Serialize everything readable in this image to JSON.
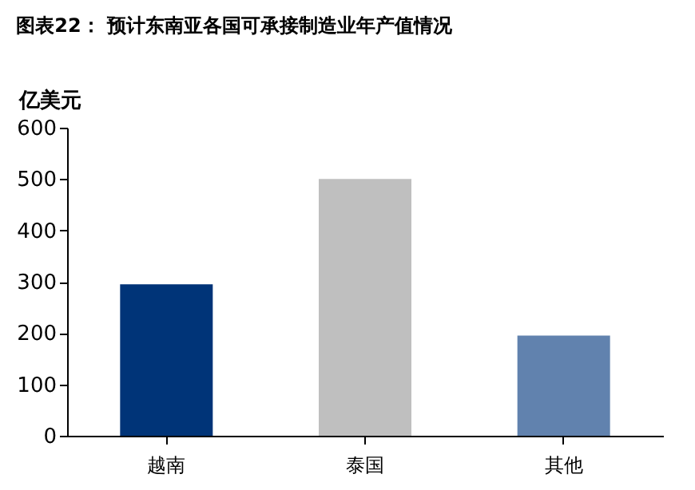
{
  "chart_data": {
    "type": "bar",
    "title": "图表22：  预计东南亚各国可承接制造业年产值情况",
    "ylabel": "亿美元",
    "categories": [
      "越南",
      "泰国",
      "其他"
    ],
    "values": [
      295,
      500,
      195
    ],
    "colors": [
      "#003478",
      "#bfbfbf",
      "#6182ae"
    ],
    "ylim": [
      0,
      600
    ],
    "yticks": [
      0,
      100,
      200,
      300,
      400,
      500,
      600
    ],
    "grid": false
  }
}
